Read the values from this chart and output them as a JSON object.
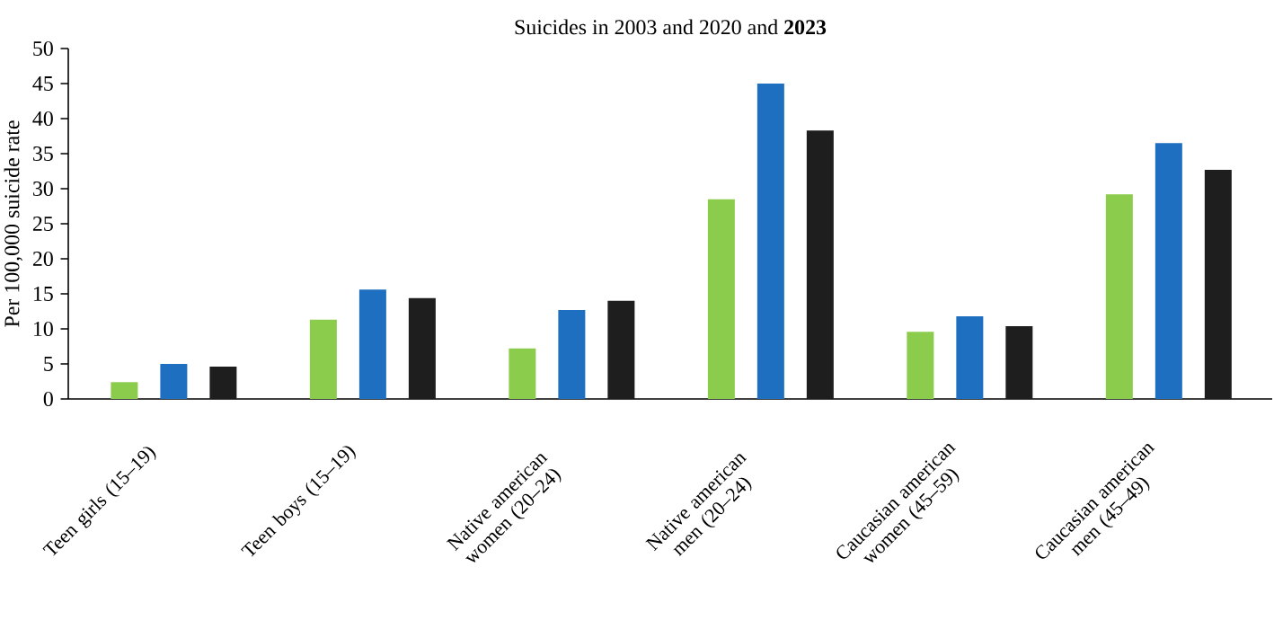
{
  "chart_data": {
    "type": "bar",
    "title": "Suicides in 2003 and 2020 and **2023**",
    "ylabel": "Per 100,000 suicide rate",
    "categories": [
      "Teen girls (15–19)",
      "Teen boys (15–19)",
      "Native american women (20–24)",
      "Native american men (20–24)",
      "Caucasian american women (45–59)",
      "Caucasian american men (45–49)"
    ],
    "series": [
      {
        "color": "#8ccc4c",
        "values": [
          2.4,
          11.3,
          7.2,
          28.5,
          9.6,
          29.2
        ]
      },
      {
        "color": "#1f6fc0",
        "values": [
          5.0,
          15.6,
          12.7,
          45.0,
          11.8,
          36.5
        ]
      },
      {
        "color": "#1e1e1e",
        "values": [
          4.6,
          14.4,
          14.0,
          38.3,
          10.4,
          32.7
        ]
      }
    ],
    "ylim": [
      0,
      50
    ],
    "yticks": [
      0,
      5,
      10,
      15,
      20,
      25,
      30,
      35,
      40,
      45,
      50
    ]
  }
}
